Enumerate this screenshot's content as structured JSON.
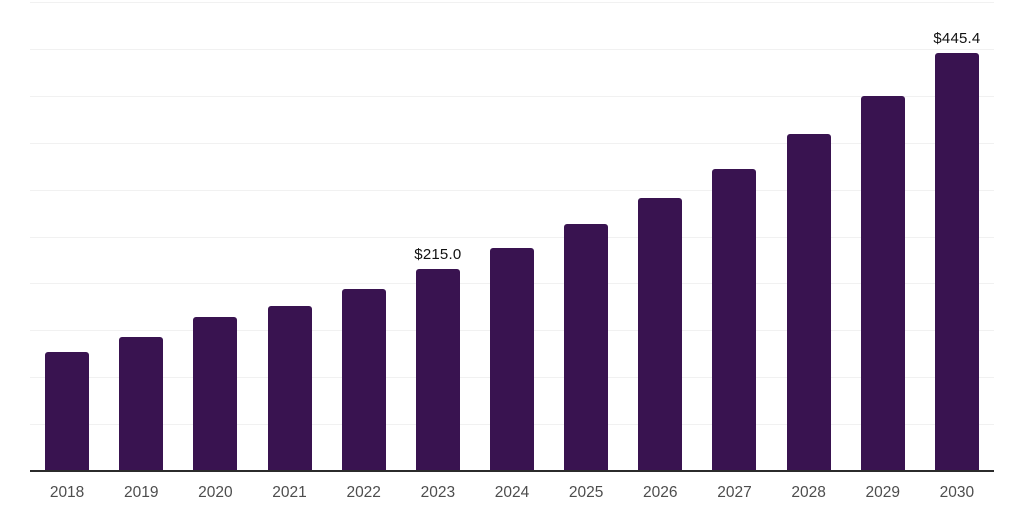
{
  "chart_data": {
    "type": "bar",
    "title": "",
    "xlabel": "",
    "ylabel": "",
    "categories": [
      "2018",
      "2019",
      "2020",
      "2021",
      "2022",
      "2023",
      "2024",
      "2025",
      "2026",
      "2027",
      "2028",
      "2029",
      "2030"
    ],
    "values": [
      127.0,
      142.5,
      164.5,
      176.0,
      194.0,
      215.0,
      237.5,
      263.0,
      291.5,
      322.0,
      359.0,
      399.5,
      445.4
    ],
    "data_labels": {
      "2023": "$215.0",
      "2030": "$445.4"
    },
    "ylim": [
      0,
      500
    ],
    "grid_step": 50,
    "grid_on": true,
    "legend": "none",
    "bar_color": "#391350",
    "grid_color": "#f1f1f1",
    "axis_line_color": "#2b2b2b",
    "tick_label_color": "#4d4d4d",
    "data_label_color": "#111111",
    "background_color": "#ffffff"
  }
}
